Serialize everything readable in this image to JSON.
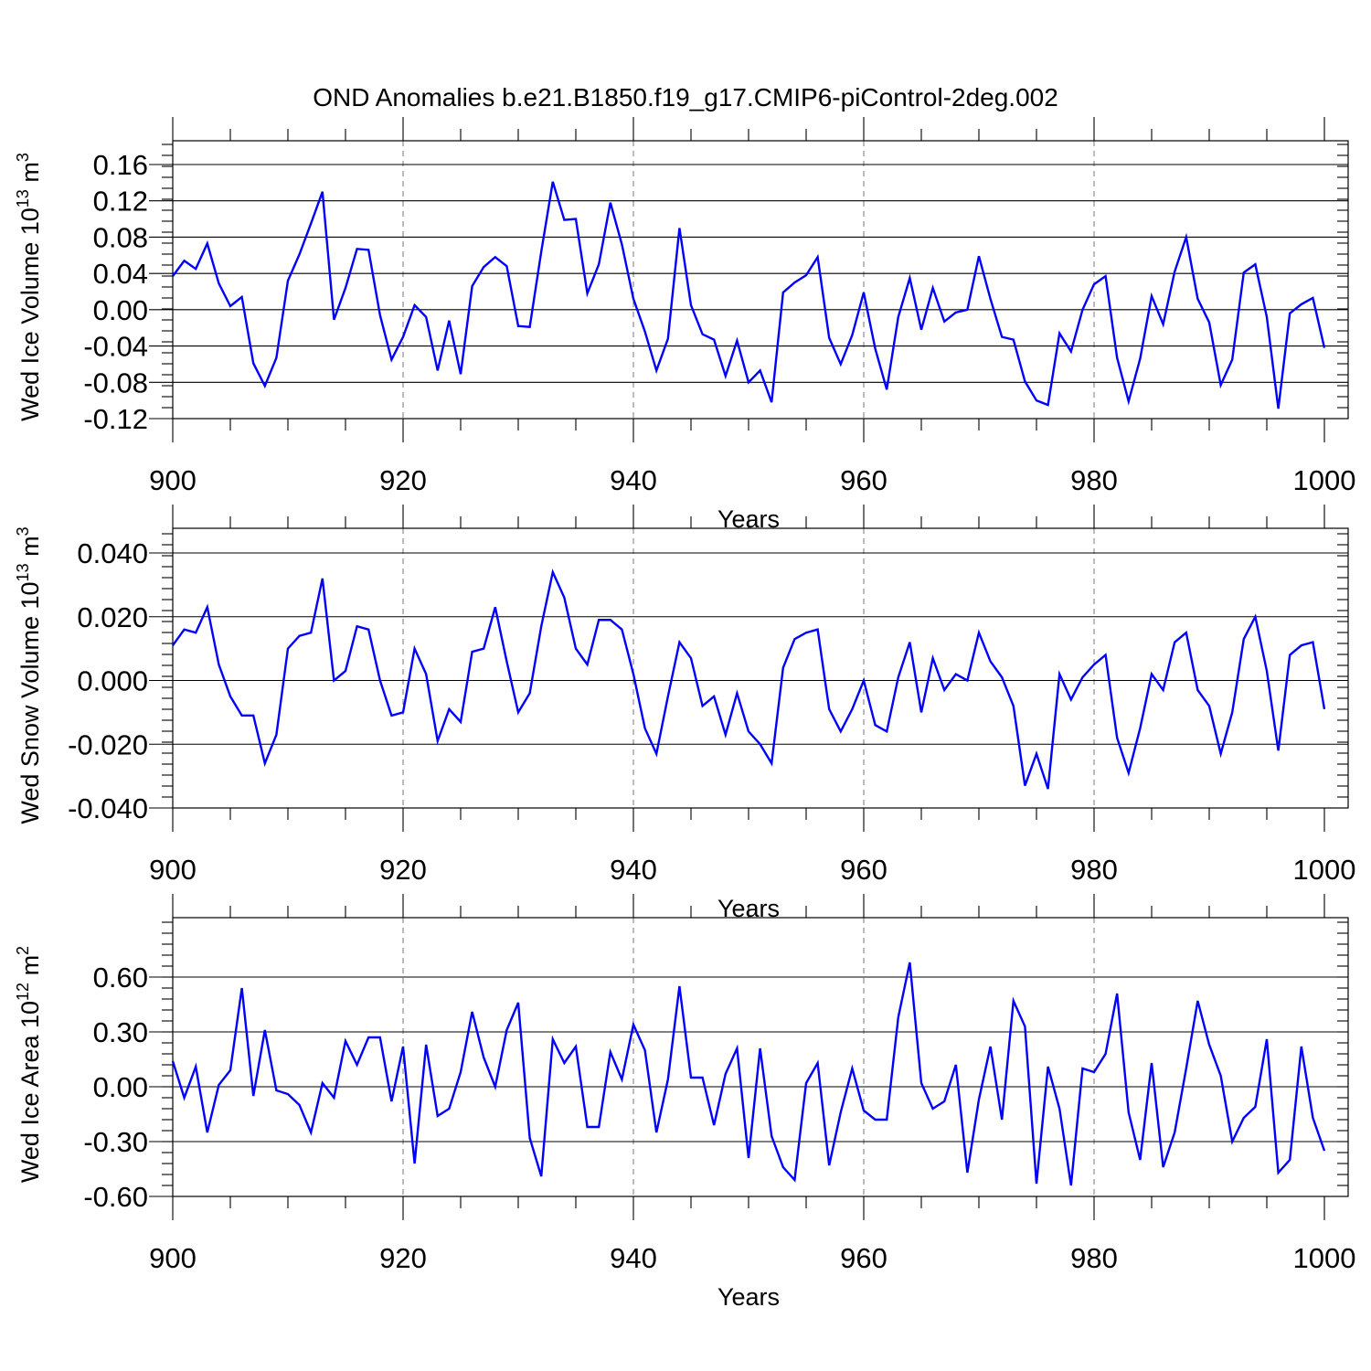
{
  "title": "OND Anomalies b.e21.B1850.f19_g17.CMIP6-piControl-2deg.002",
  "colors": {
    "line": "#0000ff",
    "grid": "#777777"
  },
  "chart_data": [
    {
      "type": "line",
      "xlabel": "Years",
      "ylabel": "Wed Ice Volume 10",
      "ylabel_exp": "13",
      "ylabel_unit": " m",
      "ylabel_unit_exp": "3",
      "xlim": [
        900,
        1000
      ],
      "ylim": [
        -0.12,
        0.16
      ],
      "yticks": [
        "0.16",
        "0.12",
        "0.08",
        "0.04",
        "0.00",
        "-0.04",
        "-0.08",
        "-0.12"
      ],
      "xticks": [
        "900",
        "920",
        "940",
        "960",
        "980",
        "1000"
      ],
      "grid": "dashed vertical at 920, 940, 960, 980",
      "series": [
        {
          "x_start": 900,
          "values": [
            0.037,
            0.054,
            0.045,
            0.073,
            0.029,
            0.004,
            0.014,
            -0.059,
            -0.084,
            -0.053,
            0.032,
            0.061,
            0.095,
            0.13,
            -0.011,
            0.024,
            0.067,
            0.066,
            -0.006,
            -0.055,
            -0.03,
            0.005,
            -0.008,
            -0.067,
            -0.012,
            -0.071,
            0.026,
            0.047,
            0.058,
            0.048,
            -0.018,
            -0.019,
            0.064,
            0.141,
            0.099,
            0.1,
            0.018,
            0.05,
            0.118,
            0.072,
            0.012,
            -0.024,
            -0.067,
            -0.032,
            0.09,
            0.005,
            -0.027,
            -0.033,
            -0.073,
            -0.034,
            -0.08,
            -0.067,
            -0.102,
            0.019,
            0.03,
            0.038,
            0.058,
            -0.031,
            -0.06,
            -0.028,
            0.019,
            -0.043,
            -0.088,
            -0.008,
            0.035,
            -0.022,
            0.024,
            -0.013,
            -0.003,
            0.0,
            0.059,
            0.012,
            -0.03,
            -0.033,
            -0.079,
            -0.1,
            -0.105,
            -0.026,
            -0.046,
            0.0,
            0.028,
            0.037,
            -0.053,
            -0.101,
            -0.054,
            0.015,
            -0.016,
            0.042,
            0.08,
            0.012,
            -0.014,
            -0.083,
            -0.055,
            0.041,
            0.05,
            -0.008,
            -0.109,
            -0.004,
            0.006,
            0.013,
            -0.042
          ]
        }
      ]
    },
    {
      "type": "line",
      "xlabel": "Years",
      "ylabel": "Wed Snow Volume 10",
      "ylabel_exp": "13",
      "ylabel_unit": " m",
      "ylabel_unit_exp": "3",
      "xlim": [
        900,
        1000
      ],
      "ylim": [
        -0.04,
        0.04
      ],
      "yticks": [
        "0.040",
        "0.020",
        "0.000",
        "-0.020",
        "-0.040"
      ],
      "xticks": [
        "900",
        "920",
        "940",
        "960",
        "980",
        "1000"
      ],
      "grid": "dashed vertical at 920, 940, 960, 980",
      "series": [
        {
          "x_start": 900,
          "values": [
            0.011,
            0.016,
            0.015,
            0.023,
            0.005,
            -0.005,
            -0.011,
            -0.011,
            -0.026,
            -0.017,
            0.01,
            0.014,
            0.015,
            0.032,
            0.0,
            0.003,
            0.017,
            0.016,
            0.0,
            -0.011,
            -0.01,
            0.01,
            0.002,
            -0.019,
            -0.009,
            -0.013,
            0.009,
            0.01,
            0.023,
            0.006,
            -0.01,
            -0.004,
            0.017,
            0.034,
            0.026,
            0.01,
            0.005,
            0.019,
            0.019,
            0.016,
            0.002,
            -0.015,
            -0.023,
            -0.005,
            0.012,
            0.007,
            -0.008,
            -0.005,
            -0.017,
            -0.004,
            -0.016,
            -0.02,
            -0.026,
            0.004,
            0.013,
            0.015,
            0.016,
            -0.009,
            -0.016,
            -0.009,
            0.0,
            -0.014,
            -0.016,
            0.001,
            0.012,
            -0.01,
            0.007,
            -0.003,
            0.002,
            0.0,
            0.015,
            0.006,
            0.001,
            -0.008,
            -0.033,
            -0.023,
            -0.034,
            0.002,
            -0.006,
            0.001,
            0.005,
            0.008,
            -0.018,
            -0.029,
            -0.015,
            0.002,
            -0.003,
            0.012,
            0.015,
            -0.003,
            -0.008,
            -0.023,
            -0.01,
            0.013,
            0.02,
            0.003,
            -0.022,
            0.008,
            0.011,
            0.012,
            -0.009
          ]
        }
      ]
    },
    {
      "type": "line",
      "xlabel": "Years",
      "ylabel": "Wed Ice Area 10",
      "ylabel_exp": "12",
      "ylabel_unit": " m",
      "ylabel_unit_exp": "2",
      "xlim": [
        900,
        1000
      ],
      "ylim": [
        -0.6,
        0.8
      ],
      "yticks": [
        "0.60",
        "0.30",
        "0.00",
        "-0.30",
        "-0.60"
      ],
      "xticks": [
        "900",
        "920",
        "940",
        "960",
        "980",
        "1000"
      ],
      "grid": "dashed vertical at 920, 940, 960, 980",
      "series": [
        {
          "x_start": 900,
          "values": [
            0.14,
            -0.06,
            0.11,
            -0.25,
            0.01,
            0.09,
            0.54,
            -0.05,
            0.31,
            -0.02,
            -0.04,
            -0.1,
            -0.25,
            0.02,
            -0.06,
            0.25,
            0.12,
            0.27,
            0.27,
            -0.08,
            0.22,
            -0.42,
            0.23,
            -0.16,
            -0.12,
            0.08,
            0.41,
            0.16,
            0.0,
            0.31,
            0.46,
            -0.28,
            -0.49,
            0.26,
            0.13,
            0.22,
            -0.22,
            -0.22,
            0.19,
            0.04,
            0.34,
            0.2,
            -0.25,
            0.04,
            0.55,
            0.05,
            0.05,
            -0.21,
            0.07,
            0.21,
            -0.39,
            0.21,
            -0.27,
            -0.44,
            -0.51,
            0.02,
            0.13,
            -0.43,
            -0.14,
            0.1,
            -0.13,
            -0.18,
            -0.18,
            0.38,
            0.68,
            0.02,
            -0.12,
            -0.08,
            0.12,
            -0.47,
            -0.07,
            0.22,
            -0.18,
            0.47,
            0.33,
            -0.53,
            0.11,
            -0.12,
            -0.54,
            0.1,
            0.08,
            0.18,
            0.51,
            -0.14,
            -0.4,
            0.13,
            -0.44,
            -0.25,
            0.1,
            0.47,
            0.23,
            0.06,
            -0.3,
            -0.17,
            -0.11,
            0.26,
            -0.47,
            -0.4,
            0.22,
            -0.17,
            -0.35
          ]
        }
      ]
    }
  ]
}
